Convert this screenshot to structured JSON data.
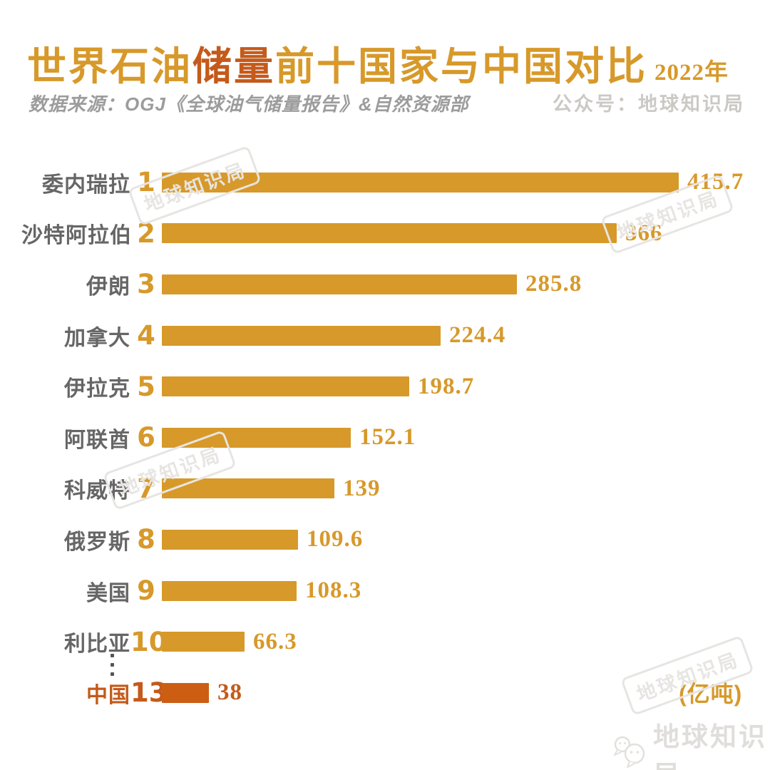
{
  "title": {
    "part1": "世界石油",
    "part2": "储量",
    "part3": "前十国家与中国对比",
    "year": "2022年"
  },
  "subtitle": {
    "source": "数据来源：OGJ《全球油气储量报告》&自然资源部",
    "account": "公众号：地球知识局"
  },
  "unit_label": "(亿吨)",
  "watermark": {
    "stamp": "地球知识局",
    "footer": "地球知识局"
  },
  "colors": {
    "gold": "#D7992A",
    "accent": "#C45A1B",
    "china_bar": "#CC5E14",
    "label_gray": "#666666",
    "subtitle_gray": "#9C9C9C",
    "subtitle_light": "#CBC9C5",
    "watermark_gray": "#E7E5E2",
    "footer_gray": "#E0DEDB",
    "dot_gray": "#555555"
  },
  "chart_data": {
    "type": "bar",
    "orientation": "horizontal",
    "title": "世界石油储量前十国家与中国对比",
    "year": "2022",
    "unit": "亿吨",
    "source": "OGJ《全球油气储量报告》&自然资源部",
    "xlim": [
      0,
      415.7
    ],
    "grid": false,
    "value_labels_shown": true,
    "rows": [
      {
        "rank": "1",
        "country": "委内瑞拉",
        "value": 415.7,
        "display": "415.7",
        "highlight": false
      },
      {
        "rank": "2",
        "country": "沙特阿拉伯",
        "value": 366,
        "display": "366",
        "highlight": false
      },
      {
        "rank": "3",
        "country": "伊朗",
        "value": 285.8,
        "display": "285.8",
        "highlight": false
      },
      {
        "rank": "4",
        "country": "加拿大",
        "value": 224.4,
        "display": "224.4",
        "highlight": false
      },
      {
        "rank": "5",
        "country": "伊拉克",
        "value": 198.7,
        "display": "198.7",
        "highlight": false
      },
      {
        "rank": "6",
        "country": "阿联酋",
        "value": 152.1,
        "display": "152.1",
        "highlight": false
      },
      {
        "rank": "7",
        "country": "科威特",
        "value": 139,
        "display": "139",
        "highlight": false
      },
      {
        "rank": "8",
        "country": "俄罗斯",
        "value": 109.6,
        "display": "109.6",
        "highlight": false
      },
      {
        "rank": "9",
        "country": "美国",
        "value": 108.3,
        "display": "108.3",
        "highlight": false
      },
      {
        "rank": "10",
        "country": "利比亚",
        "value": 66.3,
        "display": "66.3",
        "highlight": false
      },
      {
        "rank": "13",
        "country": "中国",
        "value": 38,
        "display": "38",
        "highlight": true
      }
    ]
  }
}
